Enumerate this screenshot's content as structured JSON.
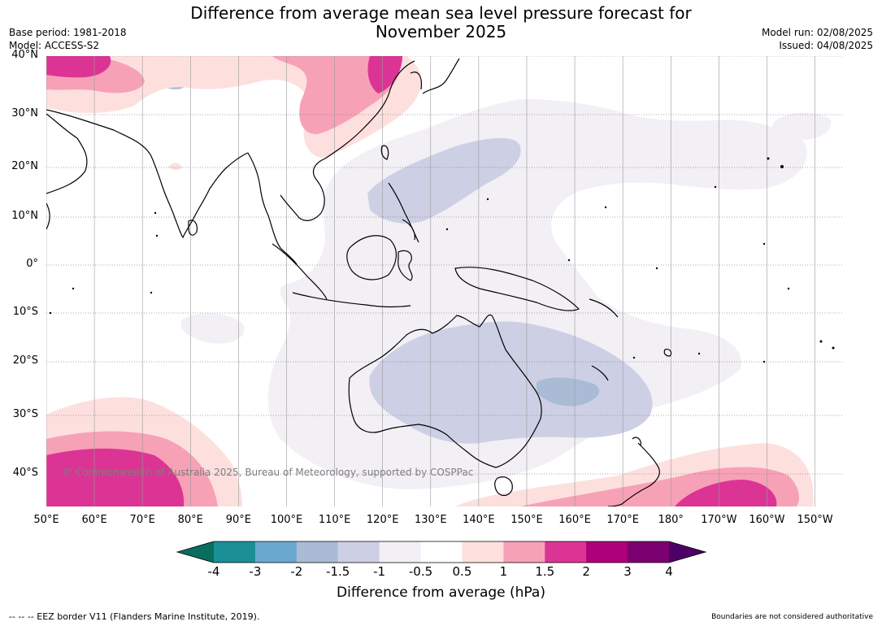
{
  "header": {
    "title_line1": "Difference from average mean sea level pressure forecast for",
    "title_line2": "November 2025",
    "base_period": "Base period: 1981-2018",
    "model": "Model: ACCESS-S2",
    "model_run": "Model run: 02/08/2025",
    "issued": "Issued: 04/08/2025"
  },
  "map": {
    "latitudes": [
      {
        "value": 40,
        "label": "40°N"
      },
      {
        "value": 30,
        "label": "30°N"
      },
      {
        "value": 20,
        "label": "20°N"
      },
      {
        "value": 10,
        "label": "10°N"
      },
      {
        "value": 0,
        "label": "0°"
      },
      {
        "value": -10,
        "label": "10°S"
      },
      {
        "value": -20,
        "label": "20°S"
      },
      {
        "value": -30,
        "label": "30°S"
      },
      {
        "value": -40,
        "label": "40°S"
      }
    ],
    "longitudes": [
      {
        "value": 50,
        "label": "50°E"
      },
      {
        "value": 60,
        "label": "60°E"
      },
      {
        "value": 70,
        "label": "70°E"
      },
      {
        "value": 80,
        "label": "80°E"
      },
      {
        "value": 90,
        "label": "90°E"
      },
      {
        "value": 100,
        "label": "100°E"
      },
      {
        "value": 110,
        "label": "110°E"
      },
      {
        "value": 120,
        "label": "120°E"
      },
      {
        "value": 130,
        "label": "130°E"
      },
      {
        "value": 140,
        "label": "140°E"
      },
      {
        "value": 150,
        "label": "150°E"
      },
      {
        "value": 160,
        "label": "160°E"
      },
      {
        "value": 170,
        "label": "170°E"
      },
      {
        "value": 180,
        "label": "180°"
      },
      {
        "value": 190,
        "label": "170°W"
      },
      {
        "value": 200,
        "label": "160°W"
      },
      {
        "value": 210,
        "label": "150°W"
      }
    ],
    "copyright": "© Commonwealth of Australia 2025, Bureau of Meteorology, supported by COSPPac"
  },
  "colorbar": {
    "ticks": [
      "-4",
      "-3",
      "-2",
      "-1.5",
      "-1",
      "-0.5",
      "0.5",
      "1",
      "1.5",
      "2",
      "3",
      "4"
    ],
    "colors": [
      "#1a8f95",
      "#6aa8d0",
      "#aabbd6",
      "#cdd0e4",
      "#f2eff5",
      "#ffffff",
      "#fde0de",
      "#f7a1b7",
      "#dc3495",
      "#ad0079",
      "#7a0070"
    ],
    "low_extend_color": "#0a6e5e",
    "high_extend_color": "#4d0066",
    "label": "Difference from average (hPa)"
  },
  "footer": {
    "eez_note": "--  --  -- EEZ border V11 (Flanders Marine Institute, 2019).",
    "boundaries_note": "Boundaries are not considered authoritative"
  }
}
